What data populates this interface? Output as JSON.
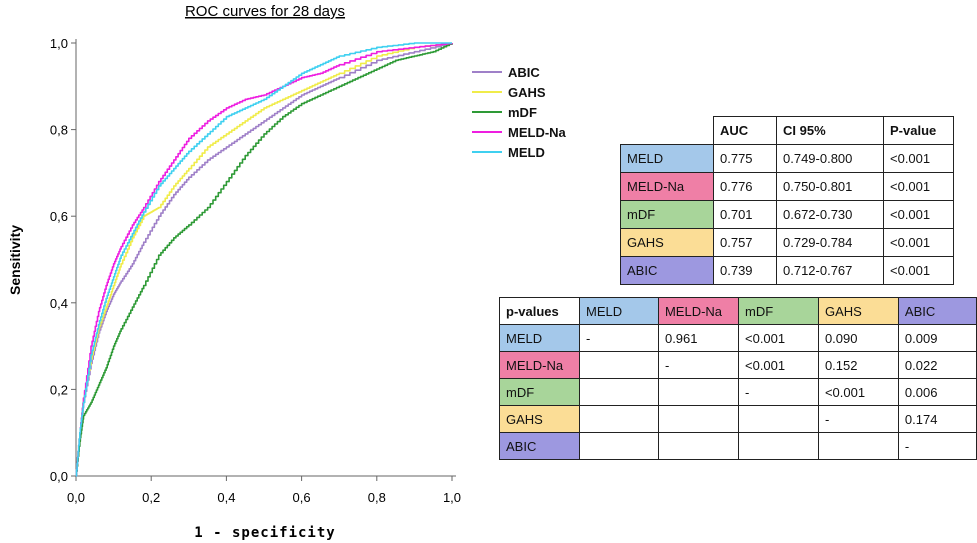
{
  "chart_data": {
    "type": "line",
    "title": "ROC curves for 28 days",
    "xlabel": "1 - specificity",
    "ylabel": "Sensitivity",
    "xlim": [
      0,
      1
    ],
    "ylim": [
      0,
      1
    ],
    "x_ticks": [
      "0,0",
      "0,2",
      "0,4",
      "0,6",
      "0,8",
      "1,0"
    ],
    "y_ticks": [
      "0,0",
      "0,2",
      "0,4",
      "0,6",
      "0,8",
      "1,0"
    ],
    "legend_position": "top-right",
    "series": [
      {
        "name": "ABIC",
        "color": "#9f80c8",
        "x": [
          0,
          0.01,
          0.02,
          0.04,
          0.06,
          0.08,
          0.1,
          0.12,
          0.15,
          0.18,
          0.22,
          0.26,
          0.3,
          0.35,
          0.4,
          0.45,
          0.5,
          0.55,
          0.6,
          0.65,
          0.7,
          0.8,
          0.9,
          1.0
        ],
        "y": [
          0,
          0.08,
          0.17,
          0.26,
          0.33,
          0.38,
          0.42,
          0.45,
          0.49,
          0.54,
          0.6,
          0.65,
          0.69,
          0.73,
          0.76,
          0.79,
          0.82,
          0.85,
          0.88,
          0.9,
          0.92,
          0.96,
          0.98,
          1.0
        ]
      },
      {
        "name": "GAHS",
        "color": "#f0ec4a",
        "x": [
          0,
          0.01,
          0.02,
          0.04,
          0.06,
          0.08,
          0.1,
          0.12,
          0.15,
          0.18,
          0.2,
          0.22,
          0.26,
          0.3,
          0.35,
          0.4,
          0.45,
          0.5,
          0.55,
          0.6,
          0.65,
          0.7,
          0.8,
          0.9,
          1.0
        ],
        "y": [
          0,
          0.1,
          0.18,
          0.27,
          0.34,
          0.39,
          0.44,
          0.49,
          0.55,
          0.6,
          0.61,
          0.62,
          0.67,
          0.71,
          0.76,
          0.79,
          0.82,
          0.85,
          0.87,
          0.89,
          0.91,
          0.93,
          0.97,
          0.99,
          1.0
        ]
      },
      {
        "name": "mDF",
        "color": "#2e9a36",
        "x": [
          0,
          0.01,
          0.02,
          0.04,
          0.06,
          0.08,
          0.1,
          0.12,
          0.15,
          0.18,
          0.22,
          0.26,
          0.3,
          0.35,
          0.4,
          0.45,
          0.5,
          0.55,
          0.6,
          0.65,
          0.7,
          0.75,
          0.8,
          0.85,
          0.9,
          0.95,
          1.0
        ],
        "y": [
          0,
          0.08,
          0.14,
          0.17,
          0.21,
          0.25,
          0.3,
          0.34,
          0.39,
          0.44,
          0.51,
          0.55,
          0.58,
          0.62,
          0.68,
          0.74,
          0.79,
          0.83,
          0.86,
          0.88,
          0.9,
          0.92,
          0.94,
          0.96,
          0.97,
          0.98,
          1.0
        ]
      },
      {
        "name": "MELD-Na",
        "color": "#ee1ee0",
        "x": [
          0,
          0.01,
          0.02,
          0.04,
          0.06,
          0.08,
          0.1,
          0.12,
          0.15,
          0.18,
          0.22,
          0.26,
          0.3,
          0.35,
          0.4,
          0.45,
          0.5,
          0.55,
          0.6,
          0.65,
          0.7,
          0.8,
          0.9,
          1.0
        ],
        "y": [
          0,
          0.1,
          0.18,
          0.3,
          0.38,
          0.44,
          0.49,
          0.53,
          0.58,
          0.62,
          0.68,
          0.73,
          0.78,
          0.82,
          0.85,
          0.87,
          0.88,
          0.9,
          0.92,
          0.93,
          0.95,
          0.98,
          0.99,
          1.0
        ]
      },
      {
        "name": "MELD",
        "color": "#3fd0f0",
        "x": [
          0,
          0.01,
          0.02,
          0.04,
          0.06,
          0.08,
          0.1,
          0.12,
          0.15,
          0.18,
          0.22,
          0.26,
          0.3,
          0.35,
          0.4,
          0.45,
          0.5,
          0.55,
          0.6,
          0.65,
          0.7,
          0.8,
          0.9,
          1.0
        ],
        "y": [
          0,
          0.1,
          0.17,
          0.28,
          0.35,
          0.41,
          0.46,
          0.51,
          0.56,
          0.61,
          0.67,
          0.71,
          0.75,
          0.79,
          0.83,
          0.85,
          0.87,
          0.9,
          0.93,
          0.95,
          0.97,
          0.99,
          1.0,
          1.0
        ]
      }
    ]
  },
  "auc_table": {
    "headers": [
      "",
      "AUC",
      "CI 95%",
      "P-value"
    ],
    "rows": [
      {
        "label": "MELD",
        "color": "#a4c8ea",
        "auc": "0.775",
        "ci": "0.749-0.800",
        "p": "<0.001"
      },
      {
        "label": "MELD-Na",
        "color": "#ef7fa6",
        "auc": "0.776",
        "ci": "0.750-0.801",
        "p": "<0.001"
      },
      {
        "label": "mDF",
        "color": "#a8d59a",
        "auc": "0.701",
        "ci": "0.672-0.730",
        "p": "<0.001"
      },
      {
        "label": "GAHS",
        "color": "#fbdd96",
        "auc": "0.757",
        "ci": "0.729-0.784",
        "p": "<0.001"
      },
      {
        "label": "ABIC",
        "color": "#9d98e0",
        "auc": "0.739",
        "ci": "0.712-0.767",
        "p": "<0.001"
      }
    ]
  },
  "pvalue_table": {
    "corner": "p-values",
    "columns": [
      {
        "label": "MELD",
        "color": "#a4c8ea"
      },
      {
        "label": "MELD-Na",
        "color": "#ef7fa6"
      },
      {
        "label": "mDF",
        "color": "#a8d59a"
      },
      {
        "label": "GAHS",
        "color": "#fbdd96"
      },
      {
        "label": "ABIC",
        "color": "#9d98e0"
      }
    ],
    "rows": [
      {
        "label": "MELD",
        "color": "#a4c8ea",
        "cells": [
          "-",
          "0.961",
          "<0.001",
          "0.090",
          "0.009"
        ]
      },
      {
        "label": "MELD-Na",
        "color": "#ef7fa6",
        "cells": [
          "",
          "-",
          "<0.001",
          "0.152",
          "0.022"
        ]
      },
      {
        "label": "mDF",
        "color": "#a8d59a",
        "cells": [
          "",
          "",
          "-",
          "<0.001",
          "0.006"
        ]
      },
      {
        "label": "GAHS",
        "color": "#fbdd96",
        "cells": [
          "",
          "",
          "",
          "-",
          "0.174"
        ]
      },
      {
        "label": "ABIC",
        "color": "#9d98e0",
        "cells": [
          "",
          "",
          "",
          "",
          "-"
        ]
      }
    ]
  }
}
